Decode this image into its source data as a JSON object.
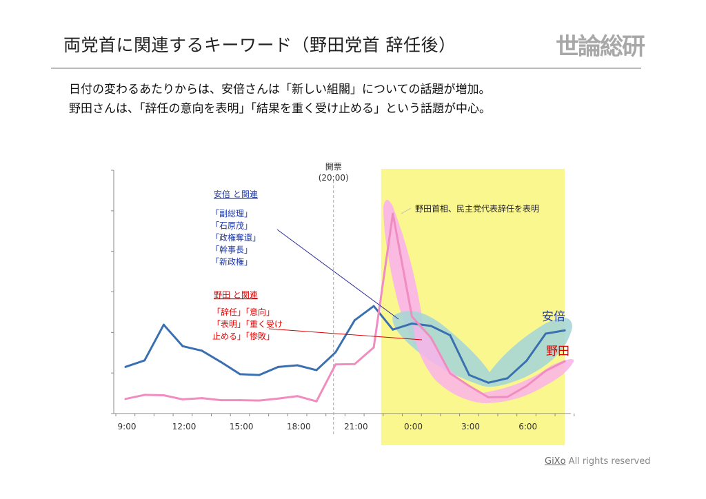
{
  "title": "両党首に関連するキーワード（野田党首 辞任後）",
  "logo": "世論総研",
  "description": [
    "日付の変わるあたりからは、安倍さんは「新しい組閣」についての話題が増加。",
    "野田さんは、「辞任の意向を表明」「結果を重く受け止める」という話題が中心。"
  ],
  "footer": {
    "brand": "GiXo",
    "text": " All rights reserved"
  },
  "chart_data": {
    "type": "line",
    "x": [
      "9:00",
      "10:00",
      "11:00",
      "12:00",
      "13:00",
      "14:00",
      "15:00",
      "16:00",
      "17:00",
      "18:00",
      "19:00",
      "20:00",
      "21:00",
      "22:00",
      "23:00",
      "0:00",
      "1:00",
      "2:00",
      "3:00",
      "4:00",
      "5:00",
      "6:00",
      "7:00",
      "8:00"
    ],
    "tick_labels": [
      "9:00",
      "12:00",
      "15:00",
      "18:00",
      "21:00",
      "0:00",
      "3:00",
      "6:00"
    ],
    "ylim": [
      0,
      6
    ],
    "y_tick_labels": "none",
    "series": [
      {
        "name": "安倍",
        "color": "#3a6fb0",
        "values": [
          1.15,
          1.31,
          2.19,
          1.66,
          1.55,
          1.27,
          0.97,
          0.95,
          1.15,
          1.19,
          1.07,
          1.51,
          2.3,
          2.65,
          2.07,
          2.22,
          2.16,
          1.93,
          0.95,
          0.76,
          0.87,
          1.3,
          1.97,
          2.05
        ]
      },
      {
        "name": "野田",
        "color": "#f08cc0",
        "values": [
          0.36,
          0.46,
          0.45,
          0.35,
          0.38,
          0.33,
          0.33,
          0.32,
          0.37,
          0.43,
          0.3,
          1.21,
          1.22,
          1.63,
          4.93,
          2.39,
          1.87,
          0.99,
          0.68,
          0.4,
          0.41,
          0.68,
          1.05,
          1.29
        ]
      }
    ],
    "vline": {
      "label1": "開票",
      "label2": "(20:00)"
    },
    "highlight_region": {
      "from": "23:00",
      "to": "8:00",
      "color": "#fbf78f"
    },
    "annotations": {
      "event": "野田首相、民主党代表辞任を表明",
      "abe_heading": "安倍  と関連",
      "abe_words": [
        "「副総理」",
        "「石原茂」",
        "「政権奪還」",
        "「幹事長」",
        "「新政権」"
      ],
      "noda_heading": "野田  と関連",
      "noda_words": [
        "「辞任」「意向」",
        "「表明」「重く受け",
        "止める」「惨敗」"
      ]
    }
  }
}
